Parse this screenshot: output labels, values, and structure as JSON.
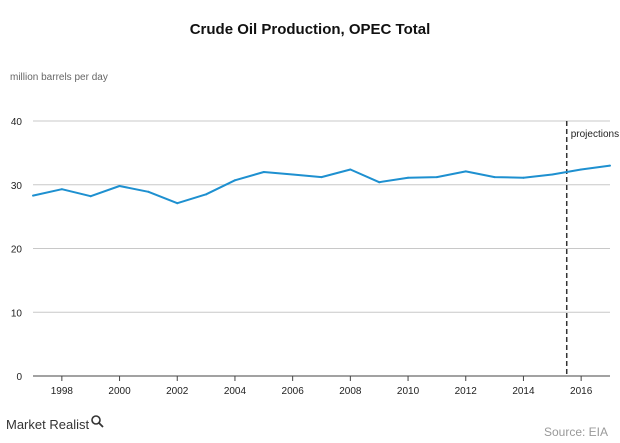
{
  "chart_data": {
    "type": "line",
    "title": "Crude Oil Production, OPEC Total",
    "ylabel": "million barrels per day",
    "xlabel": "",
    "ylim": [
      0,
      40
    ],
    "xlim": [
      1997,
      2017
    ],
    "y_ticks": [
      0,
      10,
      20,
      30,
      40
    ],
    "x_ticks": [
      1998,
      2000,
      2002,
      2004,
      2006,
      2008,
      2010,
      2012,
      2014,
      2016
    ],
    "grid": true,
    "series": [
      {
        "color": "#1e90d0",
        "x": [
          1997,
          1998,
          1999,
          2000,
          2001,
          2002,
          2003,
          2004,
          2005,
          2006,
          2007,
          2008,
          2009,
          2010,
          2011,
          2012,
          2013,
          2014,
          2015,
          2016,
          2017
        ],
        "values": [
          28.3,
          29.3,
          28.2,
          29.8,
          28.9,
          27.1,
          28.5,
          30.7,
          32.0,
          31.6,
          31.2,
          32.4,
          30.4,
          31.1,
          31.2,
          32.1,
          31.2,
          31.1,
          31.6,
          32.4,
          33.0
        ]
      }
    ],
    "projection_marker": {
      "x": 2015.5,
      "label": "projections"
    }
  },
  "footer": {
    "brand": "Market Realist",
    "source": "Source: EIA"
  }
}
